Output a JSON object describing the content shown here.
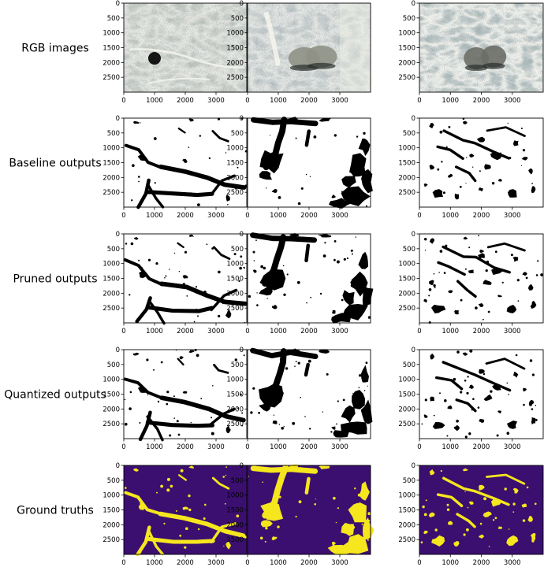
{
  "figure": {
    "rows": [
      {
        "label": "RGB images",
        "kind": "rgb"
      },
      {
        "label": "Baseline outputs",
        "kind": "mask"
      },
      {
        "label": "Pruned outputs",
        "kind": "mask"
      },
      {
        "label": "Quantized outputs",
        "kind": "mask"
      },
      {
        "label": "Ground truths",
        "kind": "gt"
      }
    ],
    "columns": 3,
    "x_ticks": [
      "0",
      "1000",
      "2000",
      "3000"
    ],
    "x_tick_values": [
      0,
      1000,
      2000,
      3000
    ],
    "y_ticks": [
      "0",
      "500",
      "1000",
      "1500",
      "2000",
      "2500"
    ],
    "y_tick_values": [
      0,
      500,
      1000,
      1500,
      2000,
      2500
    ],
    "x_range": [
      0,
      4000
    ],
    "y_range": [
      0,
      3000
    ],
    "colors": {
      "mask_background": "#ffffff",
      "mask_foreground": "#000000",
      "gt_background": "#3b0f70",
      "gt_foreground": "#f5e61e",
      "rgb_base": "#b9c3c0",
      "rgb_light": "#eef2ea",
      "rgb_dark": "#1e1e1e"
    }
  }
}
